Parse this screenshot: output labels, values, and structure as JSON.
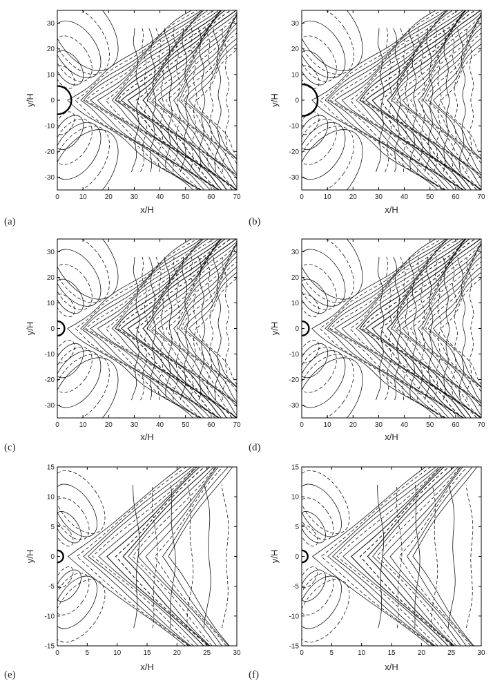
{
  "chart_data": [
    {
      "type": "contour",
      "panel_label": "(a)",
      "xlabel": "x/H",
      "ylabel": "y/H",
      "xlim": [
        0,
        70
      ],
      "ylim": [
        -35,
        35
      ],
      "x_ticks": [
        0,
        10,
        20,
        30,
        40,
        50,
        60,
        70
      ],
      "y_ticks": [
        -30,
        -20,
        -10,
        0,
        10,
        20,
        30
      ],
      "obstacle": {
        "center": [
          0,
          0
        ],
        "radius": 5.5
      },
      "contours": "solid = positive, dashed = negative"
    },
    {
      "type": "contour",
      "panel_label": "(b)",
      "xlabel": "x/H",
      "ylabel": "y/H",
      "xlim": [
        0,
        70
      ],
      "ylim": [
        -35,
        35
      ],
      "x_ticks": [
        0,
        10,
        20,
        30,
        40,
        50,
        60,
        70
      ],
      "y_ticks": [
        -30,
        -20,
        -10,
        0,
        10,
        20,
        30
      ],
      "obstacle": {
        "center": [
          0,
          0
        ],
        "radius": 6.2
      },
      "contours": "solid = positive, dashed = negative"
    },
    {
      "type": "contour",
      "panel_label": "(c)",
      "xlabel": "x/H",
      "ylabel": "y/H",
      "xlim": [
        0,
        70
      ],
      "ylim": [
        -35,
        35
      ],
      "x_ticks": [
        0,
        10,
        20,
        30,
        40,
        50,
        60,
        70
      ],
      "y_ticks": [
        -30,
        -20,
        -10,
        0,
        10,
        20,
        30
      ],
      "obstacle": {
        "center": [
          0,
          0
        ],
        "radius": 2.8
      },
      "contours": "solid = positive, dashed = negative"
    },
    {
      "type": "contour",
      "panel_label": "(d)",
      "xlabel": "x/H",
      "ylabel": "y/H",
      "xlim": [
        0,
        70
      ],
      "ylim": [
        -35,
        35
      ],
      "x_ticks": [
        0,
        10,
        20,
        30,
        40,
        50,
        60,
        70
      ],
      "y_ticks": [
        -30,
        -20,
        -10,
        0,
        10,
        20,
        30
      ],
      "obstacle": {
        "center": [
          0,
          0
        ],
        "radius": 2.8
      },
      "contours": "solid = positive, dashed = negative"
    },
    {
      "type": "contour",
      "panel_label": "(e)",
      "xlabel": "x/H",
      "ylabel": "y/H",
      "xlim": [
        0,
        30
      ],
      "ylim": [
        -15,
        15
      ],
      "x_ticks": [
        0,
        5,
        10,
        15,
        20,
        25,
        30
      ],
      "y_ticks": [
        -15,
        -10,
        -5,
        0,
        5,
        10,
        15
      ],
      "obstacle": {
        "center": [
          0,
          0
        ],
        "radius": 1.0
      },
      "contours": "solid = positive, dashed = negative"
    },
    {
      "type": "contour",
      "panel_label": "(f)",
      "xlabel": "x/H",
      "ylabel": "y/H",
      "xlim": [
        0,
        30
      ],
      "ylim": [
        -15,
        15
      ],
      "x_ticks": [
        0,
        5,
        10,
        15,
        20,
        25,
        30
      ],
      "y_ticks": [
        -15,
        -10,
        -5,
        0,
        5,
        10,
        15
      ],
      "obstacle": {
        "center": [
          0,
          0
        ],
        "radius": 1.0
      },
      "contours": "solid = positive, dashed = negative"
    }
  ]
}
